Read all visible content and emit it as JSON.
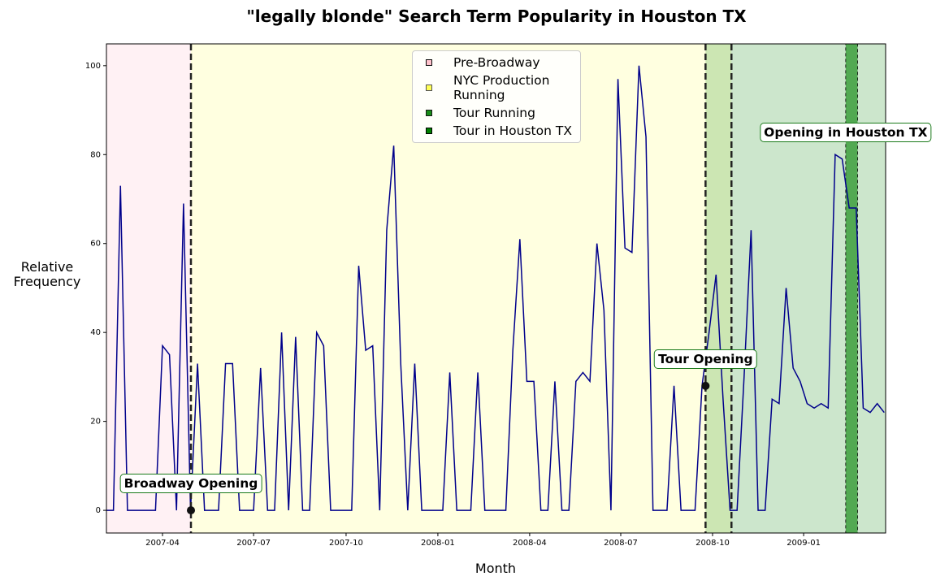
{
  "chart_data": {
    "type": "line",
    "title": "\"legally blonde\" Search Term Popularity in Houston TX",
    "x_label": "Month",
    "y_label": "Relative Frequency",
    "series": [
      {
        "name": "legally blonde",
        "color": "#00008b",
        "values": [
          0,
          0,
          73,
          0,
          0,
          0,
          0,
          0,
          37,
          35,
          0,
          69,
          0,
          33,
          0,
          0,
          0,
          33,
          33,
          0,
          0,
          0,
          32,
          0,
          0,
          40,
          0,
          39,
          0,
          0,
          40,
          37,
          0,
          0,
          0,
          0,
          55,
          36,
          37,
          0,
          63,
          82,
          33,
          0,
          33,
          0,
          0,
          0,
          0,
          31,
          0,
          0,
          0,
          31,
          0,
          0,
          0,
          0,
          36,
          61,
          29,
          29,
          0,
          0,
          29,
          0,
          0,
          29,
          31,
          29,
          60,
          45,
          0,
          97,
          59,
          58,
          100,
          84,
          0,
          0,
          0,
          28,
          0,
          0,
          0,
          28,
          40,
          53,
          25,
          0,
          0,
          30,
          63,
          0,
          0,
          25,
          24,
          50,
          32,
          29,
          24,
          23,
          24,
          23,
          80,
          79,
          68,
          68,
          23,
          22,
          24,
          22
        ]
      }
    ],
    "xlim": [
      0,
      111.2
    ],
    "ylim": [
      -5.1,
      104.9
    ],
    "xticks": [
      {
        "value": 8.0,
        "label": "2007-04"
      },
      {
        "value": 21.0,
        "label": "2007-07"
      },
      {
        "value": 34.2,
        "label": "2007-10"
      },
      {
        "value": 47.3,
        "label": "2008-01"
      },
      {
        "value": 60.4,
        "label": "2008-04"
      },
      {
        "value": 73.4,
        "label": "2008-07"
      },
      {
        "value": 86.5,
        "label": "2008-10"
      },
      {
        "value": 99.5,
        "label": "2009-01"
      }
    ],
    "yticks": [
      0,
      20,
      40,
      60,
      80,
      100
    ],
    "grid": false,
    "spans": [
      {
        "name": "Pre-Broadway",
        "color": "#ffc0cb",
        "alpha": 0.22,
        "start": 0,
        "end": 12.06
      },
      {
        "name": "NYC Production Running",
        "color": "#ffff00",
        "alpha": 0.12,
        "start": 12.06,
        "end": 89.2
      },
      {
        "name": "Tour Running",
        "color": "#008000",
        "alpha": 0.2,
        "start": 85.5,
        "end": 111.2
      },
      {
        "name": "Tour in Houston TX",
        "color": "#008000",
        "alpha": 0.6,
        "start": 105.5,
        "end": 107.2,
        "edge": "dashed"
      }
    ],
    "vlines": [
      12.06,
      85.5,
      89.2
    ],
    "legend": "upper center",
    "annotations": [
      {
        "text": "Broadway Opening",
        "point": [
          12.06,
          0
        ],
        "text_at": [
          12.06,
          6
        ]
      },
      {
        "text": "Tour Opening",
        "point": [
          85.5,
          28
        ],
        "text_at": [
          85.5,
          34
        ]
      },
      {
        "text": "Opening in Houston TX",
        "text_at": [
          105.5,
          85
        ]
      }
    ]
  }
}
